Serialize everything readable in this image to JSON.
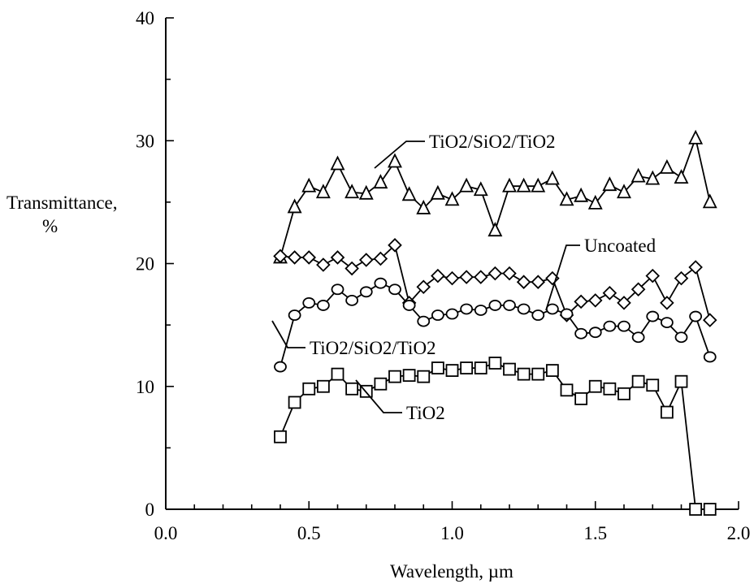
{
  "chart_data": {
    "type": "line",
    "xlabel": "Wavelength, µm",
    "ylabel_line1": "Transmittance,",
    "ylabel_line2": "%",
    "xlim": [
      0.0,
      2.0
    ],
    "ylim": [
      0,
      40
    ],
    "x_ticks": [
      "0.0",
      "0.5",
      "1.0",
      "1.5",
      "2.0"
    ],
    "y_ticks": [
      "0",
      "10",
      "20",
      "30",
      "40"
    ],
    "grid": false,
    "series": [
      {
        "name": "TiO2/SiO2/TiO2",
        "marker": "triangle",
        "x": [
          0.4,
          0.45,
          0.5,
          0.55,
          0.6,
          0.65,
          0.7,
          0.75,
          0.8,
          0.85,
          0.9,
          0.95,
          1.0,
          1.05,
          1.1,
          1.15,
          1.2,
          1.25,
          1.3,
          1.35,
          1.4,
          1.45,
          1.5,
          1.55,
          1.6,
          1.65,
          1.7,
          1.75,
          1.8,
          1.85,
          1.9
        ],
        "y": [
          20.5,
          24.6,
          26.3,
          25.8,
          28.1,
          25.8,
          25.7,
          26.6,
          28.3,
          25.6,
          24.5,
          25.7,
          25.2,
          26.3,
          26.0,
          22.7,
          26.3,
          26.3,
          26.3,
          26.9,
          25.2,
          25.5,
          24.9,
          26.4,
          25.8,
          27.1,
          26.9,
          27.8,
          27.0,
          30.2,
          25.0
        ]
      },
      {
        "name": "Uncoated",
        "marker": "diamond",
        "x": [
          0.4,
          0.45,
          0.5,
          0.55,
          0.6,
          0.65,
          0.7,
          0.75,
          0.8,
          0.85,
          0.9,
          0.95,
          1.0,
          1.05,
          1.1,
          1.15,
          1.2,
          1.25,
          1.3,
          1.35,
          1.4,
          1.45,
          1.5,
          1.55,
          1.6,
          1.65,
          1.7,
          1.75,
          1.8,
          1.85,
          1.9
        ],
        "y": [
          20.6,
          20.5,
          20.5,
          19.9,
          20.5,
          19.6,
          20.3,
          20.4,
          21.5,
          16.8,
          18.1,
          19.0,
          18.8,
          18.9,
          18.9,
          19.2,
          19.2,
          18.5,
          18.5,
          18.8,
          15.8,
          16.9,
          17.0,
          17.6,
          16.8,
          17.9,
          19.0,
          16.8,
          18.8,
          19.7,
          15.4
        ]
      },
      {
        "name": "TiO2/SiO2/TiO2",
        "marker": "circle",
        "x": [
          0.4,
          0.45,
          0.5,
          0.55,
          0.6,
          0.65,
          0.7,
          0.75,
          0.8,
          0.85,
          0.9,
          0.95,
          1.0,
          1.05,
          1.1,
          1.15,
          1.2,
          1.25,
          1.3,
          1.35,
          1.4,
          1.45,
          1.5,
          1.55,
          1.6,
          1.65,
          1.7,
          1.75,
          1.8,
          1.85,
          1.9
        ],
        "y": [
          11.6,
          15.8,
          16.8,
          16.6,
          17.9,
          17.0,
          17.7,
          18.4,
          17.9,
          16.6,
          15.3,
          15.8,
          15.9,
          16.3,
          16.2,
          16.6,
          16.6,
          16.3,
          15.8,
          16.3,
          15.9,
          14.3,
          14.4,
          14.9,
          14.9,
          14.0,
          15.7,
          15.2,
          14.0,
          15.7,
          12.4
        ]
      },
      {
        "name": "TiO2",
        "marker": "square",
        "x": [
          0.4,
          0.45,
          0.5,
          0.55,
          0.6,
          0.65,
          0.7,
          0.75,
          0.8,
          0.85,
          0.9,
          0.95,
          1.0,
          1.05,
          1.1,
          1.15,
          1.2,
          1.25,
          1.3,
          1.35,
          1.4,
          1.45,
          1.5,
          1.55,
          1.6,
          1.65,
          1.7,
          1.75,
          1.8,
          1.85,
          1.9
        ],
        "y": [
          5.9,
          8.7,
          9.8,
          10.0,
          11.0,
          9.8,
          9.6,
          10.2,
          10.8,
          10.9,
          10.8,
          11.5,
          11.3,
          11.5,
          11.5,
          11.9,
          11.4,
          11.0,
          11.0,
          11.3,
          9.7,
          9.0,
          10.0,
          9.8,
          9.4,
          10.4,
          10.1,
          7.9,
          10.4,
          0.0,
          0.0
        ]
      }
    ],
    "annotations": [
      {
        "text": "TiO2/SiO2/TiO2",
        "series_index": 0
      },
      {
        "text": "Uncoated",
        "series_index": 1
      },
      {
        "text": "TiO2/SiO2/TiO2",
        "series_index": 2
      },
      {
        "text": "TiO2",
        "series_index": 3
      }
    ]
  }
}
